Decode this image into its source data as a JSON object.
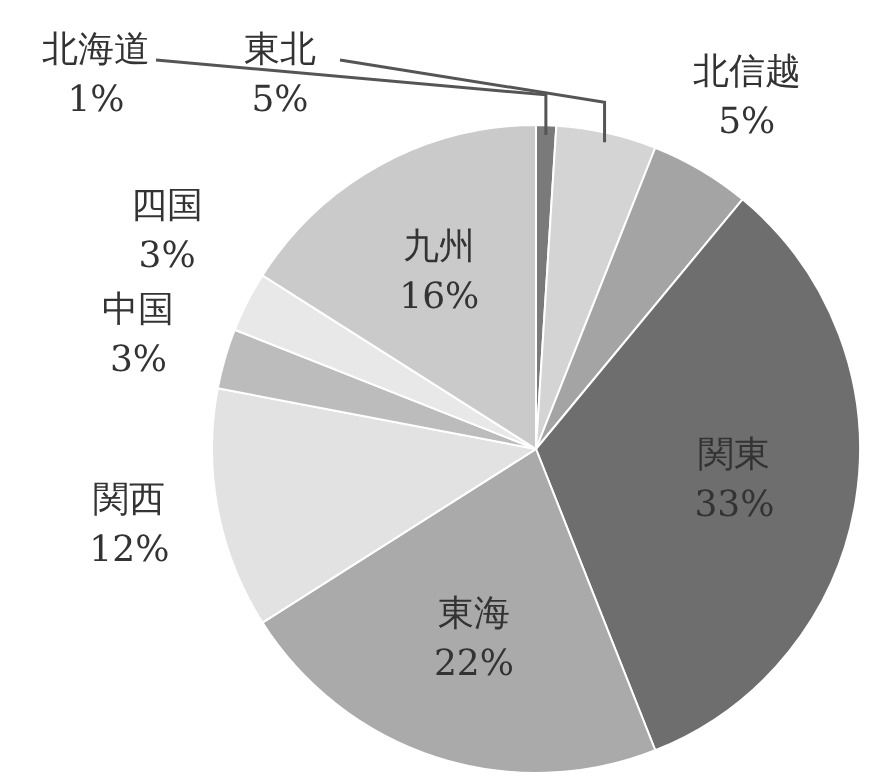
{
  "chart_data": {
    "type": "pie",
    "categories": [
      "北海道",
      "東北",
      "北信越",
      "関東",
      "東海",
      "関西",
      "中国",
      "四国",
      "九州"
    ],
    "values": [
      1,
      5,
      5,
      33,
      22,
      12,
      3,
      3,
      16
    ],
    "colors": [
      "#7a7a7a",
      "#d4d4d4",
      "#a4a4a4",
      "#6e6e6e",
      "#aaaaaa",
      "#e2e2e2",
      "#bcbcbc",
      "#e8e8e8",
      "#cacaca"
    ],
    "value_labels": [
      "1%",
      "5%",
      "5%",
      "33%",
      "22%",
      "12%",
      "3%",
      "3%",
      "16%"
    ],
    "legend": false
  }
}
